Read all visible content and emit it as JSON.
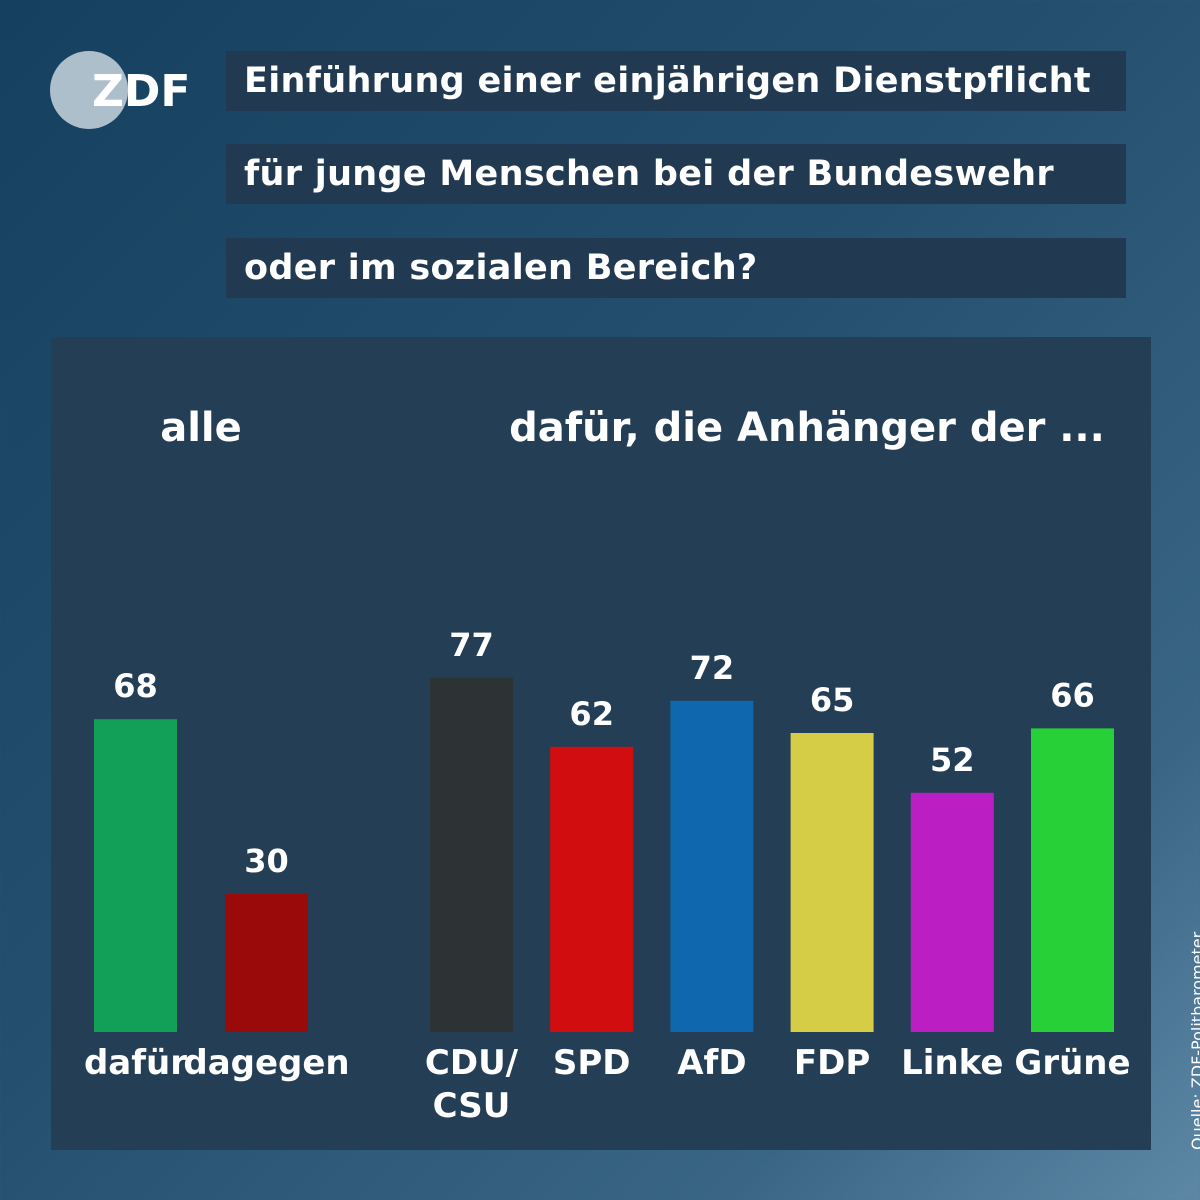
{
  "logo": {
    "name": "zdf-logo",
    "text": "ZDF",
    "circle_color": "#ffffff",
    "text_color": "#ffffff"
  },
  "title_lines": [
    "Einführung einer einjährigen Dienstpflicht",
    "für junge Menschen bei der Bundeswehr",
    "oder im sozialen Bereich?"
  ],
  "source": "Quelle: ZDF-Politbarometer",
  "chart_data": [
    {
      "type": "bar",
      "title": "alle",
      "categories": [
        "dafür",
        "dagegen"
      ],
      "values": [
        68,
        30
      ],
      "colors": [
        "#129f57",
        "#9b0a0b"
      ],
      "ylim": [
        0,
        100
      ],
      "grid": false,
      "value_labels": true
    },
    {
      "type": "bar",
      "title": "dafür, die Anhänger der ...",
      "categories": [
        "CDU/\nCSU",
        "SPD",
        "AfD",
        "FDP",
        "Linke",
        "Grüne"
      ],
      "values": [
        77,
        62,
        72,
        65,
        52,
        66
      ],
      "colors": [
        "#2d3234",
        "#d20d0f",
        "#0f68ad",
        "#d6cd47",
        "#bb1fc4",
        "#26d036"
      ],
      "ylim": [
        0,
        100
      ],
      "grid": false,
      "value_labels": true
    }
  ]
}
